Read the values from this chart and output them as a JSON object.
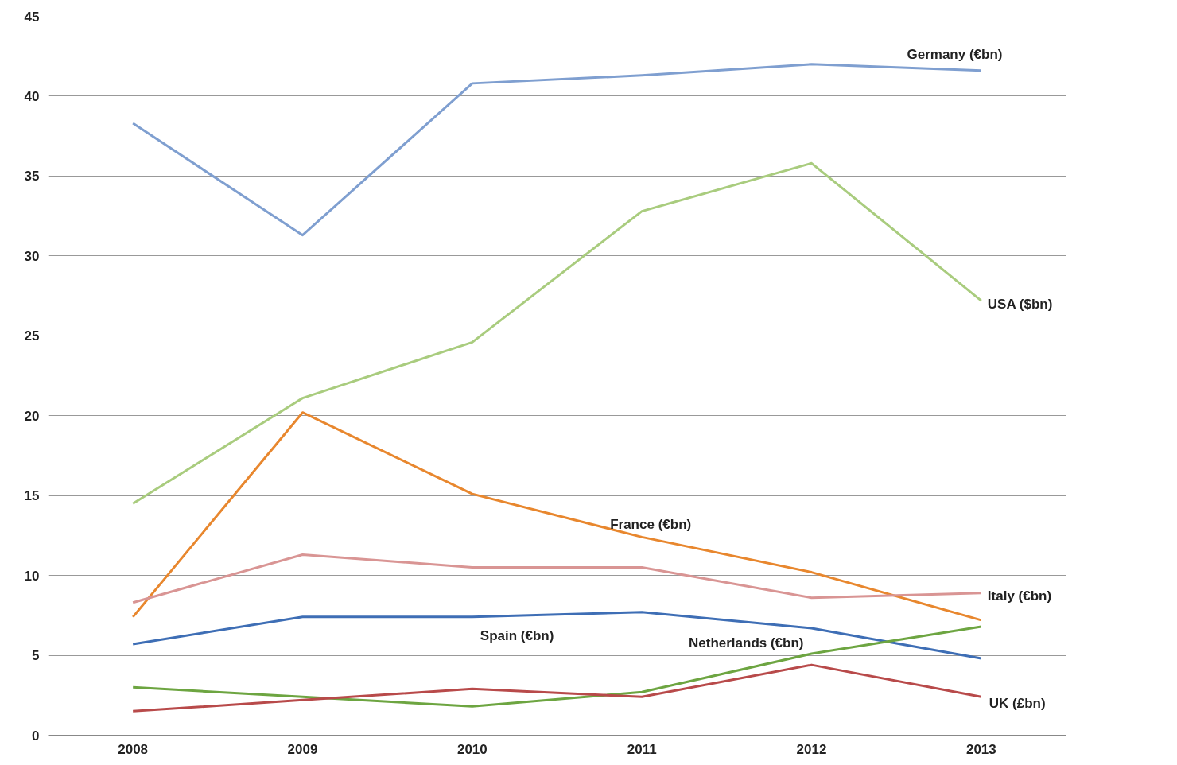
{
  "chart_data": {
    "type": "line",
    "categories": [
      "2008",
      "2009",
      "2010",
      "2011",
      "2012",
      "2013"
    ],
    "series": [
      {
        "name": "Germany (€bn)",
        "color": "#7f9fd0",
        "values": [
          38.3,
          31.3,
          40.8,
          41.3,
          42.0,
          41.6
        ]
      },
      {
        "name": "USA ($bn)",
        "color": "#a9cc7e",
        "values": [
          14.5,
          21.1,
          24.6,
          32.8,
          35.8,
          27.2
        ]
      },
      {
        "name": "France (€bn)",
        "color": "#e8872e",
        "values": [
          7.4,
          20.2,
          15.1,
          12.4,
          10.2,
          7.2
        ]
      },
      {
        "name": "Italy (€bn)",
        "color": "#d99594",
        "values": [
          8.3,
          11.3,
          10.5,
          10.5,
          8.6,
          8.9
        ]
      },
      {
        "name": "Spain (€bn)",
        "color": "#3e6eb5",
        "values": [
          5.7,
          7.4,
          7.4,
          7.7,
          6.7,
          4.8
        ]
      },
      {
        "name": "Netherlands (€bn)",
        "color": "#6da541",
        "values": [
          3.0,
          2.4,
          1.8,
          2.7,
          5.1,
          6.8
        ]
      },
      {
        "name": "UK (£bn)",
        "color": "#b84a4a",
        "values": [
          1.5,
          2.2,
          2.9,
          2.4,
          4.4,
          2.4
        ]
      }
    ],
    "ylim": [
      0,
      45
    ],
    "yticks": [
      0,
      5,
      10,
      15,
      20,
      25,
      30,
      35,
      40,
      45
    ],
    "grid": "y",
    "marker": "none",
    "line_style": "solid"
  }
}
